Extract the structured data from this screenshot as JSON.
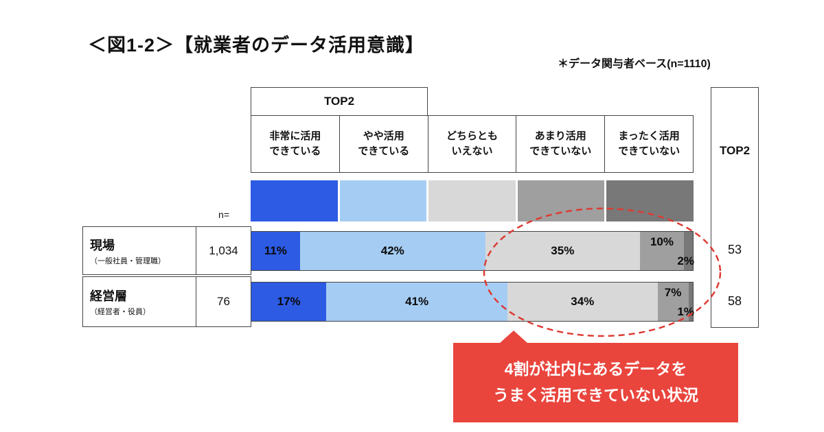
{
  "title": "＜図1-2＞【就業者のデータ活用意識】",
  "note": "＊データ関与者ベース(n=1110)",
  "colors": {
    "strongly_can": "#2d5be3",
    "somewhat_can": "#a5cdf3",
    "neither": "#d8d8d8",
    "not_much": "#9f9f9f",
    "not_at_all": "#787878",
    "callout_red": "#e9453d",
    "ellipse_red": "#dd3b33",
    "border": "#444444"
  },
  "table": {
    "top2_span_header": "TOP2",
    "n_label": "n=",
    "top2_column_label": "TOP2",
    "columns": [
      {
        "line1": "非常に活用",
        "line2": "できている"
      },
      {
        "line1": "やや活用",
        "line2": "できている"
      },
      {
        "line1": "どちらとも",
        "line2": "いえない"
      },
      {
        "line1": "あまり活用",
        "line2": "できていない"
      },
      {
        "line1": "まったく活用",
        "line2": "できていない"
      }
    ],
    "rows": [
      {
        "name": "現場",
        "sub": "（一般社員・管理職）",
        "n": "1,034",
        "top2": "53"
      },
      {
        "name": "経営層",
        "sub": "（経営者・役員）",
        "n": "76",
        "top2": "58"
      }
    ]
  },
  "callout": {
    "line1": "4割が社内にあるデータを",
    "line2": "うまく活用できていない状況"
  },
  "chart_data": {
    "type": "bar",
    "variant": "horizontal-stacked-100",
    "title": "＜図1-2＞【就業者のデータ活用意識】",
    "note": "＊データ関与者ベース(n=1110)",
    "categories": [
      "現場（一般社員・管理職）",
      "経営層（経営者・役員）"
    ],
    "n_values": [
      1034,
      76
    ],
    "unit": "%",
    "xlim": [
      0,
      100
    ],
    "legend_position": "top",
    "series": [
      {
        "name": "非常に活用できている",
        "color": "#2d5be3",
        "values": [
          11,
          17
        ]
      },
      {
        "name": "やや活用できている",
        "color": "#a5cdf3",
        "values": [
          42,
          41
        ]
      },
      {
        "name": "どちらともいえない",
        "color": "#d8d8d8",
        "values": [
          35,
          34
        ]
      },
      {
        "name": "あまり活用できていない",
        "color": "#9f9f9f",
        "values": [
          10,
          7
        ]
      },
      {
        "name": "まったく活用できていない",
        "color": "#787878",
        "values": [
          2,
          1
        ]
      }
    ],
    "top2": {
      "label": "TOP2",
      "values": [
        53,
        58
      ]
    },
    "annotation": "4割が社内にあるデータをうまく活用できていない状況"
  }
}
